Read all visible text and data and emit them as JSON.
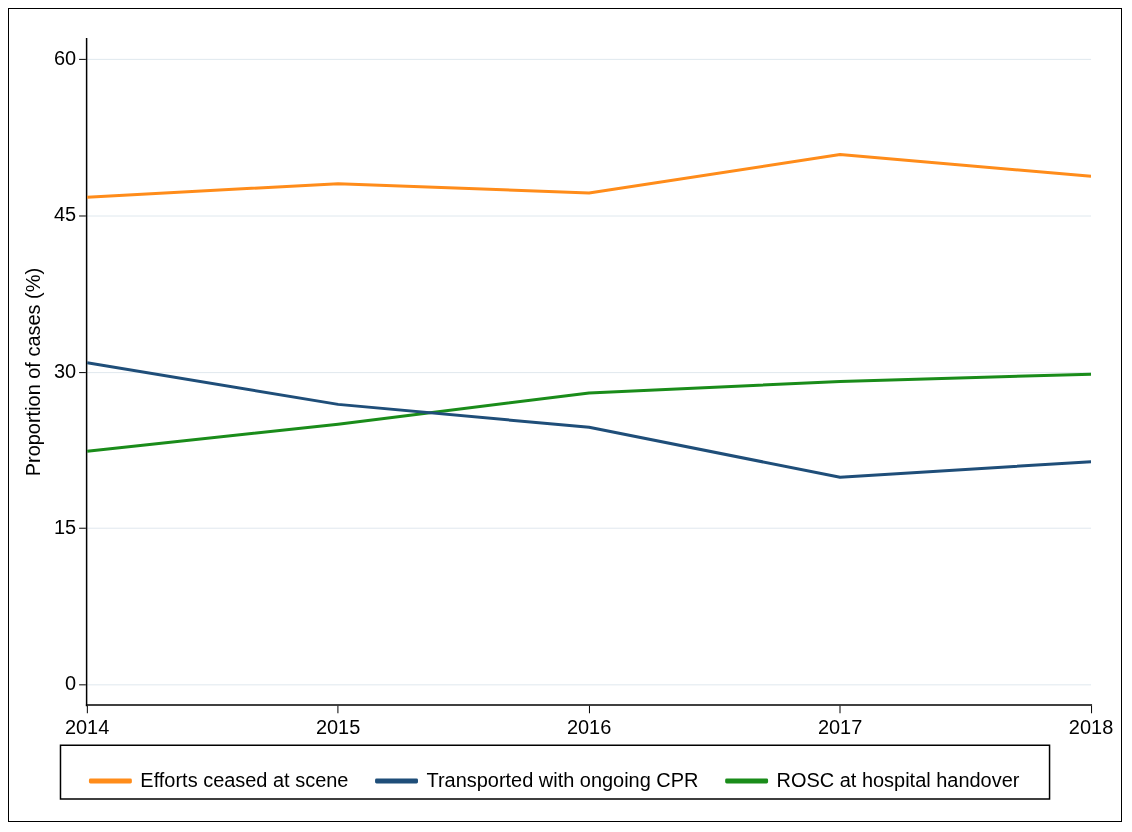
{
  "chart_data": {
    "type": "line",
    "xlabel": null,
    "ylabel": "Proportion of cases (%)",
    "x": [
      2014,
      2015,
      2016,
      2017,
      2018
    ],
    "series": [
      {
        "name": "Efforts ceased at scene",
        "color": "#ff8c1a",
        "values": [
          46.8,
          48.1,
          47.2,
          50.9,
          48.8
        ]
      },
      {
        "name": "Transported with ongoing CPR",
        "color": "#1f4e79",
        "values": [
          30.9,
          26.9,
          24.7,
          19.9,
          21.4
        ]
      },
      {
        "name": "ROSC at hospital handover",
        "color": "#1a8c1a",
        "values": [
          22.4,
          25.0,
          28.0,
          29.1,
          29.8
        ]
      }
    ],
    "xlim": [
      2014,
      2018
    ],
    "xticks": [
      2014,
      2015,
      2016,
      2017,
      2018
    ],
    "ylim": [
      -2,
      62
    ],
    "yticks": [
      0,
      15,
      30,
      45,
      60
    ],
    "grid": "y",
    "legend": "bottom",
    "marker": "none",
    "line_style": "solid"
  }
}
